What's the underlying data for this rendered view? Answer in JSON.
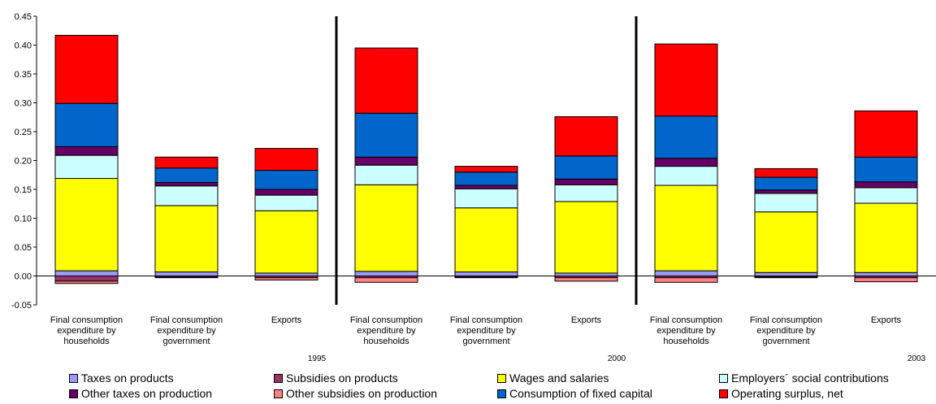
{
  "chart_data": {
    "type": "bar",
    "stacked": true,
    "ylim": [
      -0.05,
      0.45
    ],
    "yticks": [
      "-0.05",
      "0.00",
      "0.05",
      "0.10",
      "0.15",
      "0.20",
      "0.25",
      "0.30",
      "0.35",
      "0.40",
      "0.45"
    ],
    "ytick_values": [
      -0.05,
      0,
      0.05,
      0.1,
      0.15,
      0.2,
      0.25,
      0.3,
      0.35,
      0.4,
      0.45
    ],
    "groups": [
      "1995",
      "2000",
      "2003"
    ],
    "categories": [
      [
        "Final consumption",
        "expenditure by",
        "households"
      ],
      [
        "Final consumption",
        "expenditure by",
        "government"
      ],
      [
        "Exports"
      ],
      [
        "Final consumption",
        "expenditure by",
        "households"
      ],
      [
        "Final consumption",
        "expenditure by",
        "government"
      ],
      [
        "Exports"
      ],
      [
        "Final consumption",
        "expenditure by",
        "households"
      ],
      [
        "Final consumption",
        "expenditure by",
        "government"
      ],
      [
        "Exports"
      ]
    ],
    "series": [
      {
        "name": "Taxes on products",
        "color": "#9999FF",
        "values": [
          0.009,
          0.007,
          0.005,
          0.008,
          0.007,
          0.005,
          0.009,
          0.006,
          0.006
        ]
      },
      {
        "name": "Subsidies on products",
        "color": "#993366",
        "values": [
          -0.009,
          -0.002,
          -0.003,
          -0.003,
          -0.002,
          -0.003,
          -0.003,
          -0.002,
          -0.003
        ]
      },
      {
        "name": "Wages and salaries",
        "color": "#FFFF00",
        "values": [
          0.16,
          0.115,
          0.108,
          0.15,
          0.111,
          0.124,
          0.148,
          0.105,
          0.12
        ]
      },
      {
        "name": "Employers´ social contributions",
        "color": "#CCFFFF",
        "values": [
          0.04,
          0.034,
          0.027,
          0.034,
          0.033,
          0.029,
          0.033,
          0.032,
          0.027
        ]
      },
      {
        "name": "Other taxes on production",
        "color": "#660066",
        "values": [
          0.015,
          0.006,
          0.01,
          0.014,
          0.006,
          0.01,
          0.014,
          0.006,
          0.01
        ]
      },
      {
        "name": "Other subsidies on production",
        "color": "#FF8080",
        "values": [
          -0.004,
          -0.001,
          -0.004,
          -0.008,
          -0.001,
          -0.006,
          -0.008,
          -0.001,
          -0.007
        ]
      },
      {
        "name": "Consumption of fixed capital",
        "color": "#0066CC",
        "values": [
          0.075,
          0.025,
          0.033,
          0.076,
          0.023,
          0.04,
          0.073,
          0.022,
          0.043
        ]
      },
      {
        "name": "Operating surplus, net",
        "color": "#FF0000",
        "values": [
          0.118,
          0.019,
          0.038,
          0.113,
          0.01,
          0.068,
          0.125,
          0.015,
          0.08
        ]
      }
    ],
    "grid": false,
    "legend_position": "bottom"
  }
}
